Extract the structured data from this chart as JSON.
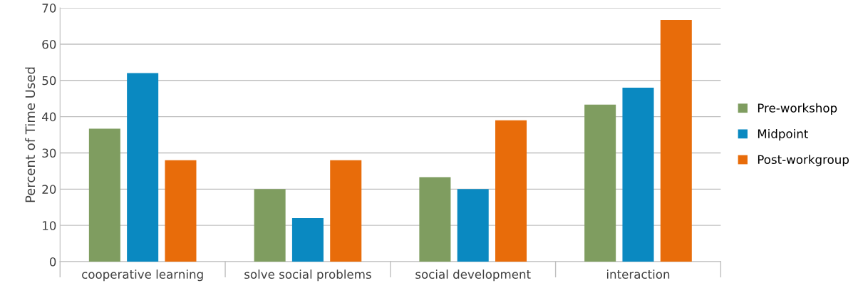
{
  "chart_data": {
    "type": "bar",
    "ylabel": "Percent of Time Used",
    "categories": [
      "cooperative learning",
      "solve social problems",
      "social development",
      "interaction"
    ],
    "series": [
      {
        "name": "Pre-workshop",
        "color": "#7f9d60",
        "values": [
          36.7,
          20,
          23.3,
          43.3
        ]
      },
      {
        "name": "Midpoint",
        "color": "#0a89c1",
        "values": [
          52,
          12,
          20,
          48
        ]
      },
      {
        "name": "Post-workgroup",
        "color": "#e86c0a",
        "values": [
          28,
          28,
          39,
          66.7
        ]
      }
    ],
    "ylim": [
      0,
      70
    ],
    "yticks": [
      0,
      10,
      20,
      30,
      40,
      50,
      60,
      70
    ],
    "grid": "y",
    "legend": "right"
  }
}
